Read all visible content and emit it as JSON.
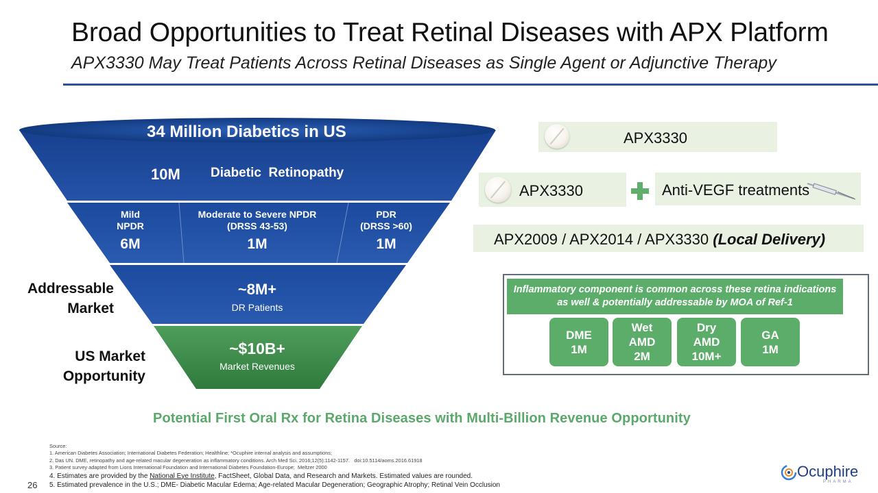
{
  "header": {
    "title": "Broad Opportunities to Treat Retinal Diseases with APX Platform",
    "subtitle": "APX3330 May Treat Patients Across Retinal Diseases as Single Agent or Adjunctive Therapy"
  },
  "funnel": {
    "top_title": "34 Million Diabetics in US",
    "dr_value": "10M",
    "dr_label": "Diabetic  Retinopathy",
    "mild_label_1": "Mild",
    "mild_label_2": "NPDR",
    "mild_value": "6M",
    "moderate_label_1": "Moderate to Severe NPDR",
    "moderate_label_2": "(DRSS 43-53)",
    "moderate_value": "1M",
    "pdr_label_1": "PDR",
    "pdr_label_2": "(DRSS >60)",
    "pdr_value": "1M",
    "addressable_value": "~8M+",
    "addressable_sub": "DR Patients",
    "market_value": "~$10B+",
    "market_sub": "Market Revenues"
  },
  "side_labels": {
    "addressable_1": "Addressable",
    "addressable_2": "Market",
    "us_market_1": "US Market",
    "us_market_2": "Opportunity"
  },
  "therapies": {
    "single": "APX3330",
    "combo_drug": "APX3330",
    "combo_partner": "Anti-VEGF treatments",
    "local_prefix": "APX2009 / APX2014 / APX3330 ",
    "local_suffix": "(Local Delivery)"
  },
  "inflammation": {
    "header": "Inflammatory component is common across these retina indications  as well & potentially addressable by MOA of Ref-1",
    "tiles": [
      {
        "line1": "DME",
        "line2": "1M",
        "line3": ""
      },
      {
        "line1": "Wet",
        "line2": "AMD",
        "line3": "2M"
      },
      {
        "line1": "Dry",
        "line2": "AMD",
        "line3": "10M+"
      },
      {
        "line1": "GA",
        "line2": "1M",
        "line3": ""
      }
    ]
  },
  "tagline": "Potential First Oral Rx for Retina Diseases with Multi-Billion Revenue Opportunity",
  "sources": {
    "heading": "Source:",
    "s1": "1. American Diabetes Association; International Diabetes Federation; Healthline; *Ocuphire internal analysis and assumptions;",
    "s2": "2. Das UN. DME, retinopathy and age-related macular degeneration as inflammatory conditions. Arch Med Sci. 2016;12(5):1142-1157.   doi:10.5114/aoms.2016.61918",
    "s3": "3. Patient survey adapted from Lions International Foundation and International Diabetes Foundation-Europe;  Meltzer 2000",
    "s4_pre": "4. Estimates are provided by the ",
    "s4_link": "National Eye Institute",
    "s4_post": ", FactSheet, Global Data, and Research and Markets. Estimated values are rounded.",
    "s5": "5. Estimated prevalence in the U.S.; DME- Diabetic Macular Edema; Age-related Macular Degeneration; Geographic Atrophy; Retinal Vein Occlusion"
  },
  "page_number": "26",
  "logo": {
    "name": "Ocuphire",
    "sub": "PHARMA"
  },
  "colors": {
    "funnel_blue": "#1f4a9c",
    "funnel_blue_dark": "#123a80",
    "funnel_green": "#3f8f4c",
    "accent_green": "#5cad6a",
    "plus_green": "#5fae6b",
    "rule_blue": "#2e4f9a"
  }
}
